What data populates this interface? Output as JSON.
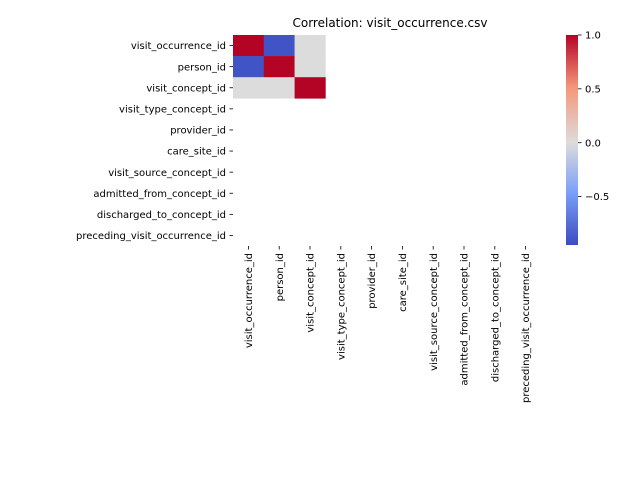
{
  "chart_data": {
    "type": "heatmap",
    "title": "Correlation: visit_occurrence.csv",
    "variables": [
      "visit_occurrence_id",
      "person_id",
      "visit_concept_id",
      "visit_type_concept_id",
      "provider_id",
      "care_site_id",
      "visit_source_concept_id",
      "admitted_from_concept_id",
      "discharged_to_concept_id",
      "preceding_visit_occurrence_id"
    ],
    "matrix": [
      [
        1.0,
        -0.95,
        0.0,
        null,
        null,
        null,
        null,
        null,
        null,
        null
      ],
      [
        -0.95,
        1.0,
        0.0,
        null,
        null,
        null,
        null,
        null,
        null,
        null
      ],
      [
        0.0,
        0.0,
        1.0,
        null,
        null,
        null,
        null,
        null,
        null,
        null
      ],
      [
        null,
        null,
        null,
        null,
        null,
        null,
        null,
        null,
        null,
        null
      ],
      [
        null,
        null,
        null,
        null,
        null,
        null,
        null,
        null,
        null,
        null
      ],
      [
        null,
        null,
        null,
        null,
        null,
        null,
        null,
        null,
        null,
        null
      ],
      [
        null,
        null,
        null,
        null,
        null,
        null,
        null,
        null,
        null,
        null
      ],
      [
        null,
        null,
        null,
        null,
        null,
        null,
        null,
        null,
        null,
        null
      ],
      [
        null,
        null,
        null,
        null,
        null,
        null,
        null,
        null,
        null,
        null
      ],
      [
        null,
        null,
        null,
        null,
        null,
        null,
        null,
        null,
        null,
        null
      ]
    ],
    "colormap": "coolwarm",
    "colorbar": {
      "range": [
        -0.95,
        1.0
      ],
      "ticks": [
        -0.5,
        0.0,
        0.5,
        1.0
      ],
      "tick_labels": [
        "−0.5",
        "0.0",
        "0.5",
        "1.0"
      ]
    },
    "grid": false
  }
}
